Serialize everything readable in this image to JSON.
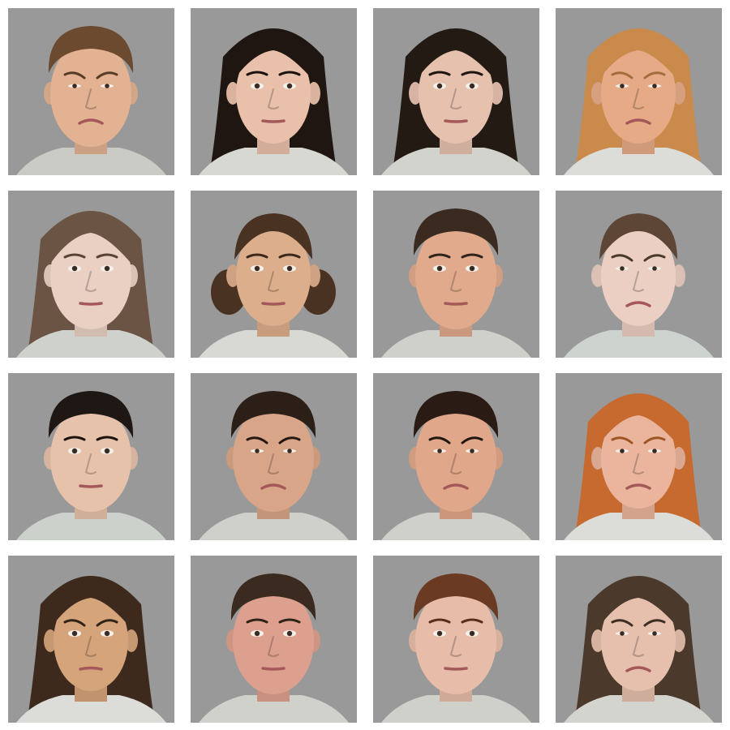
{
  "background_color": "#ffffff",
  "tile_color": "#999999",
  "grid": {
    "rows": 4,
    "cols": 4
  },
  "tiles": [
    {
      "sex": "male",
      "expression": "disgust",
      "skin": "#e2b293",
      "hair": "#6b4a2f",
      "hair_style": "short",
      "shirt": "#c9cbc4"
    },
    {
      "sex": "female",
      "expression": "neutral",
      "skin": "#e9c0aa",
      "hair": "#1f1612",
      "hair_style": "long",
      "shirt": "#d8d8d3"
    },
    {
      "sex": "female",
      "expression": "neutral",
      "skin": "#e6c1ae",
      "hair": "#241a14",
      "hair_style": "long",
      "shirt": "#d3d3ce"
    },
    {
      "sex": "female",
      "expression": "disgust",
      "skin": "#e6ab86",
      "hair": "#c98a4b",
      "hair_style": "long",
      "shirt": "#dcdcd8"
    },
    {
      "sex": "male",
      "expression": "neutral",
      "skin": "#e9d0c2",
      "hair": "#6b5443",
      "hair_style": "long",
      "shirt": "#cfd2cc"
    },
    {
      "sex": "female",
      "expression": "neutral",
      "skin": "#ddae8c",
      "hair": "#4a3222",
      "hair_style": "curly",
      "shirt": "#d9d9d4"
    },
    {
      "sex": "male",
      "expression": "neutral",
      "skin": "#e1aa8d",
      "hair": "#3b2a20",
      "hair_style": "short",
      "shirt": "#cfd0ca"
    },
    {
      "sex": "female",
      "expression": "disgust",
      "skin": "#ebcfc2",
      "hair": "#5d4635",
      "hair_style": "bun",
      "shirt": "#cdd4cf"
    },
    {
      "sex": "male",
      "expression": "neutral",
      "skin": "#e7c2ab",
      "hair": "#1f1713",
      "hair_style": "short",
      "shirt": "#cdd1cb"
    },
    {
      "sex": "male",
      "expression": "disgust",
      "skin": "#d9a588",
      "hair": "#2c1f17",
      "hair_style": "short",
      "shirt": "#d0d0cb"
    },
    {
      "sex": "male",
      "expression": "disgust",
      "skin": "#e1a78a",
      "hair": "#2a1c14",
      "hair_style": "short",
      "shirt": "#cfd0ca"
    },
    {
      "sex": "female",
      "expression": "disgust",
      "skin": "#eab59c",
      "hair": "#c66a2f",
      "hair_style": "long",
      "shirt": "#dcdcd8"
    },
    {
      "sex": "female",
      "expression": "anger",
      "skin": "#d6a47b",
      "hair": "#3d2a1d",
      "hair_style": "long",
      "shirt": "#dcdcd8"
    },
    {
      "sex": "male",
      "expression": "neutral",
      "skin": "#dea08e",
      "hair": "#3a2a1f",
      "hair_style": "short",
      "shirt": "#d1d1cb"
    },
    {
      "sex": "male",
      "expression": "neutral",
      "skin": "#e7bda9",
      "hair": "#6b3a22",
      "hair_style": "short",
      "shirt": "#cfd0ca"
    },
    {
      "sex": "female",
      "expression": "disgust",
      "skin": "#e6c0ad",
      "hair": "#4b3a2c",
      "hair_style": "long",
      "shirt": "#d3d4ce"
    }
  ]
}
